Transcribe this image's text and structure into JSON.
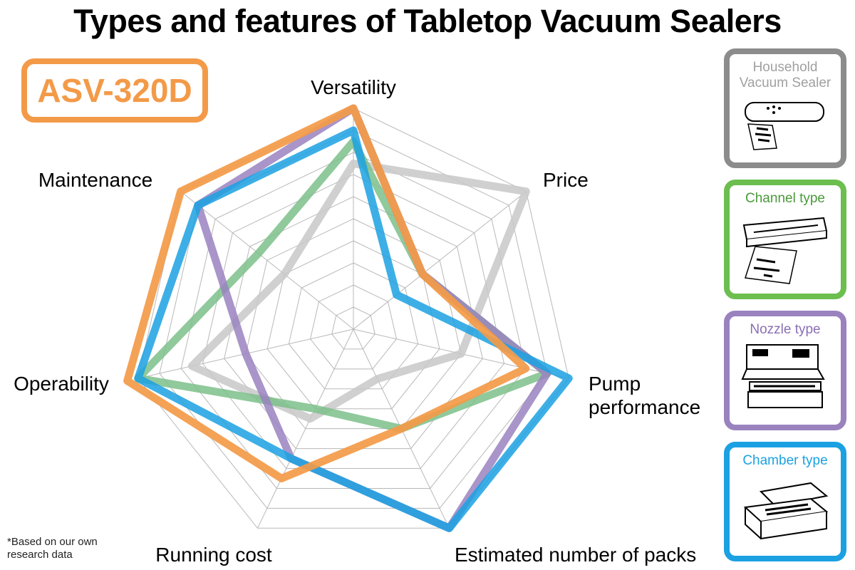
{
  "title": "Types and features of Tabletop Vacuum Sealers",
  "model": "ASV-320D",
  "footnote": "*Based on our own research data",
  "legend": [
    {
      "label": "Household Vacuum Sealer",
      "color": "#8c8c8c",
      "icon": "household-sealer-icon"
    },
    {
      "label": "Channel type",
      "color": "#6cbe4f",
      "icon": "channel-sealer-icon"
    },
    {
      "label": "Nozzle type",
      "color": "#9a82bf",
      "icon": "nozzle-sealer-icon"
    },
    {
      "label": "Chamber type",
      "color": "#1ba1e2",
      "icon": "chamber-sealer-icon"
    }
  ],
  "chart_data": {
    "type": "radar",
    "axes": [
      "Versatility",
      "Price",
      "Pump performance",
      "Estimated number of packs",
      "Running cost",
      "Operability",
      "Maintenance"
    ],
    "range": [
      0,
      10
    ],
    "grid_levels": 10,
    "series": [
      {
        "name": "Household Vacuum Sealer",
        "color": "#c8c8c8",
        "values": [
          7.5,
          10,
          5,
          2.5,
          4.5,
          7.5,
          4
        ]
      },
      {
        "name": "Channel type",
        "color": "#7cc08a",
        "values": [
          8.5,
          4,
          9,
          5,
          4,
          10,
          5.5
        ]
      },
      {
        "name": "Nozzle type",
        "color": "#9a82bf",
        "values": [
          10,
          4,
          9,
          10,
          6.5,
          5,
          9
        ]
      },
      {
        "name": "Chamber type",
        "color": "#1ba1e2",
        "values": [
          9,
          2.5,
          10,
          10,
          6.5,
          10,
          9
        ]
      },
      {
        "name": "ASV-320D",
        "color": "#f39a48",
        "values": [
          10,
          4,
          8,
          5,
          7.5,
          10.5,
          10
        ]
      }
    ]
  }
}
